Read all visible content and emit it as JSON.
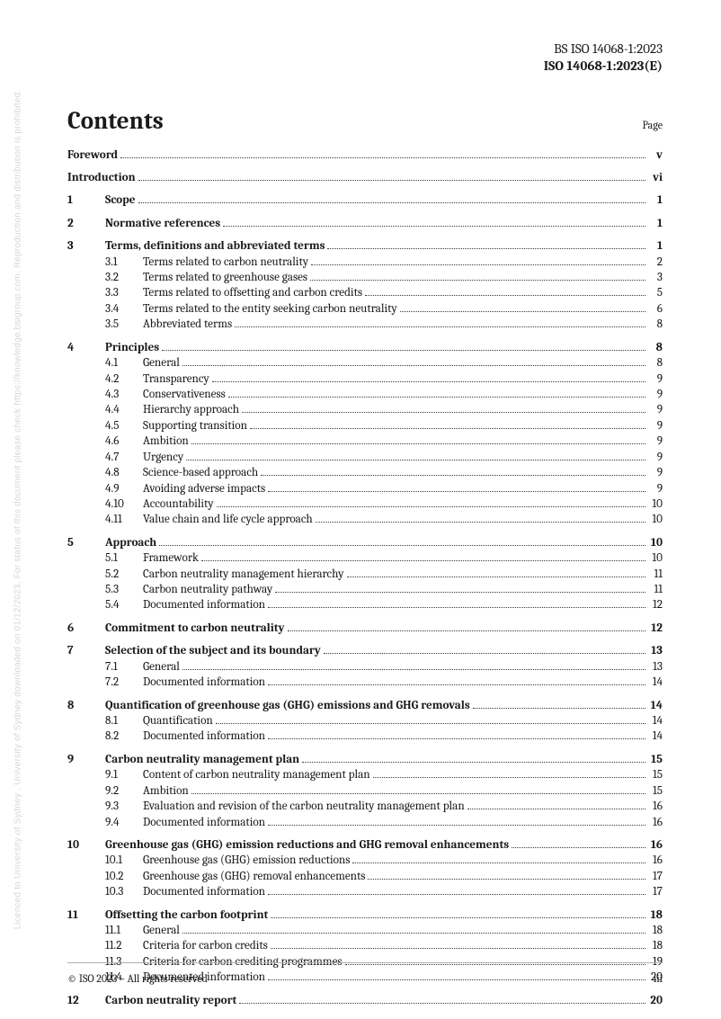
{
  "watermark": "Licenced to University of Sydney . University of Sydney downloaded on 01/12/2023. For status of this document please check https://knowledge.bsigroup.com. Reproduction and distribution is prohibited.",
  "header": {
    "line1": "BS ISO 14068-1:2023",
    "line2": "ISO 14068-1:2023(E)"
  },
  "title": "Contents",
  "page_label": "Page",
  "footer": {
    "copyright": "© ISO 2023 – All rights reserved",
    "pagenum": "iii"
  },
  "front": [
    {
      "title": "Foreword",
      "page": "v"
    },
    {
      "title": "Introduction",
      "page": "vi"
    }
  ],
  "sections": [
    {
      "num": "1",
      "title": "Scope",
      "page": "1",
      "subs": []
    },
    {
      "num": "2",
      "title": "Normative references",
      "page": "1",
      "subs": []
    },
    {
      "num": "3",
      "title": "Terms, definitions and abbreviated terms",
      "page": "1",
      "subs": [
        {
          "num": "3.1",
          "title": "Terms related to carbon neutrality",
          "page": "2"
        },
        {
          "num": "3.2",
          "title": "Terms related to greenhouse gases",
          "page": "3"
        },
        {
          "num": "3.3",
          "title": "Terms related to offsetting and carbon credits",
          "page": "5"
        },
        {
          "num": "3.4",
          "title": "Terms related to the entity seeking carbon neutrality",
          "page": "6"
        },
        {
          "num": "3.5",
          "title": "Abbreviated terms",
          "page": "8"
        }
      ]
    },
    {
      "num": "4",
      "title": "Principles",
      "page": "8",
      "subs": [
        {
          "num": "4.1",
          "title": "General",
          "page": "8"
        },
        {
          "num": "4.2",
          "title": "Transparency",
          "page": "9"
        },
        {
          "num": "4.3",
          "title": "Conservativeness",
          "page": "9"
        },
        {
          "num": "4.4",
          "title": "Hierarchy approach",
          "page": "9"
        },
        {
          "num": "4.5",
          "title": "Supporting transition",
          "page": "9"
        },
        {
          "num": "4.6",
          "title": "Ambition",
          "page": "9"
        },
        {
          "num": "4.7",
          "title": "Urgency",
          "page": "9"
        },
        {
          "num": "4.8",
          "title": "Science-based approach",
          "page": "9"
        },
        {
          "num": "4.9",
          "title": "Avoiding adverse impacts",
          "page": "9"
        },
        {
          "num": "4.10",
          "title": "Accountability",
          "page": "10"
        },
        {
          "num": "4.11",
          "title": "Value chain and life cycle approach",
          "page": "10"
        }
      ]
    },
    {
      "num": "5",
      "title": "Approach",
      "page": "10",
      "subs": [
        {
          "num": "5.1",
          "title": "Framework",
          "page": "10"
        },
        {
          "num": "5.2",
          "title": "Carbon neutrality management hierarchy",
          "page": "11"
        },
        {
          "num": "5.3",
          "title": "Carbon neutrality pathway",
          "page": "11"
        },
        {
          "num": "5.4",
          "title": "Documented information",
          "page": "12"
        }
      ]
    },
    {
      "num": "6",
      "title": "Commitment to carbon neutrality",
      "page": "12",
      "subs": []
    },
    {
      "num": "7",
      "title": "Selection of the subject and its boundary",
      "page": "13",
      "subs": [
        {
          "num": "7.1",
          "title": "General",
          "page": "13"
        },
        {
          "num": "7.2",
          "title": "Documented information",
          "page": "14"
        }
      ]
    },
    {
      "num": "8",
      "title": "Quantification of greenhouse gas (GHG) emissions and GHG removals",
      "page": "14",
      "subs": [
        {
          "num": "8.1",
          "title": "Quantification",
          "page": "14"
        },
        {
          "num": "8.2",
          "title": "Documented information",
          "page": "14"
        }
      ]
    },
    {
      "num": "9",
      "title": "Carbon neutrality management plan",
      "page": "15",
      "subs": [
        {
          "num": "9.1",
          "title": "Content of carbon neutrality management plan",
          "page": "15"
        },
        {
          "num": "9.2",
          "title": "Ambition",
          "page": "15"
        },
        {
          "num": "9.3",
          "title": "Evaluation and revision of the carbon neutrality management plan",
          "page": "16"
        },
        {
          "num": "9.4",
          "title": "Documented information",
          "page": "16"
        }
      ]
    },
    {
      "num": "10",
      "title": "Greenhouse gas (GHG) emission reductions and GHG removal enhancements",
      "page": "16",
      "subs": [
        {
          "num": "10.1",
          "title": "Greenhouse gas (GHG) emission reductions",
          "page": "16"
        },
        {
          "num": "10.2",
          "title": "Greenhouse gas (GHG) removal enhancements",
          "page": "17"
        },
        {
          "num": "10.3",
          "title": "Documented information",
          "page": "17"
        }
      ]
    },
    {
      "num": "11",
      "title": "Offsetting the carbon footprint",
      "page": "18",
      "subs": [
        {
          "num": "11.1",
          "title": "General",
          "page": "18"
        },
        {
          "num": "11.2",
          "title": "Criteria for carbon credits",
          "page": "18"
        },
        {
          "num": "11.3",
          "title": "Criteria for carbon crediting programmes",
          "page": "19"
        },
        {
          "num": "11.4",
          "title": "Documented information",
          "page": "20"
        }
      ]
    },
    {
      "num": "12",
      "title": "Carbon neutrality report",
      "page": "20",
      "subs": []
    }
  ]
}
